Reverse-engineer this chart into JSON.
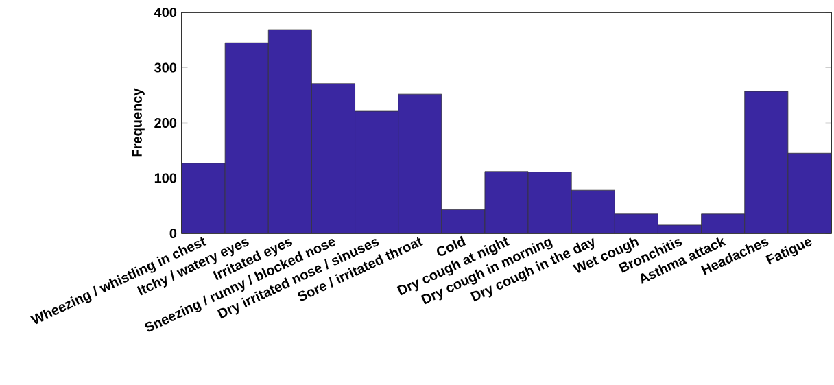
{
  "chart_data": {
    "type": "bar",
    "ylabel": "Frequency",
    "categories": [
      "Wheezing / whistling in chest",
      "Itchy / watery eyes",
      "Irritated eyes",
      "Sneezing / runny / blocked nose",
      "Dry irritated nose / sinuses",
      "Sore / irritated throat",
      "Cold",
      "Dry cough at night",
      "Dry cough in morning",
      "Dry cough in the day",
      "Wet cough",
      "Bronchitis",
      "Asthma attack",
      "Headaches",
      "Fatigue"
    ],
    "values": [
      127,
      345,
      369,
      271,
      221,
      252,
      43,
      112,
      111,
      78,
      35,
      15,
      35,
      257,
      145
    ],
    "color": "#3a27a1",
    "ylim": [
      0,
      400
    ],
    "yticks": [
      0,
      100,
      200,
      300,
      400
    ]
  }
}
